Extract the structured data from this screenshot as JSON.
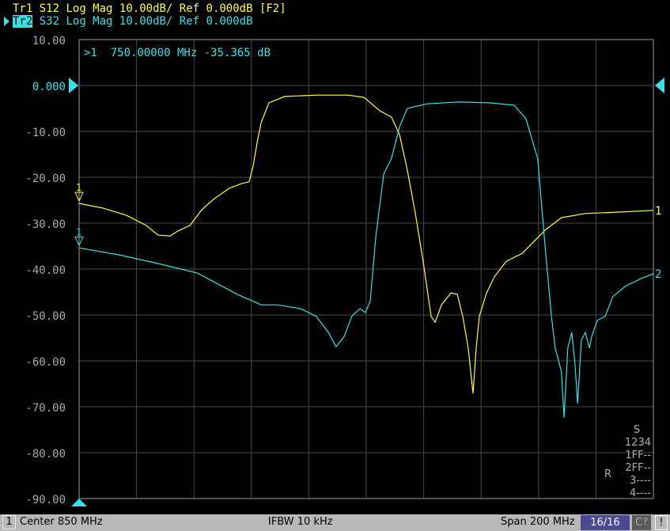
{
  "header": {
    "trace1": {
      "label": "Tr1",
      "param": "S12",
      "format": "Log Mag",
      "scale": "10.00dB/",
      "ref": "Ref 0.000dB",
      "extra": "[F2]",
      "color": "#ffff3c"
    },
    "trace2": {
      "label": "Tr2",
      "param": "S32",
      "format": "Log Mag",
      "scale": "10.00dB/",
      "ref": "Ref 0.000dB",
      "color": "#38e0e8"
    }
  },
  "marker_readout": ">1  750.00000 MHz -35.365 dB",
  "status": {
    "channel": "1",
    "center": "Center 850 MHz",
    "ifbw": "IFBW 10 kHz",
    "span": "Span 200 MHz",
    "sweep": "16/16",
    "cal": "C?",
    "warning": "!"
  },
  "sparam_table": {
    "header1": "S",
    "header2": "1234",
    "rows": [
      "1FF--",
      "2FF--",
      "3----",
      "4----"
    ],
    "rlabel": "R"
  },
  "chart_data": {
    "type": "line",
    "xlim": [
      750,
      950
    ],
    "ylim": [
      -90,
      10
    ],
    "x_unit": "MHz",
    "y_unit": "dB",
    "grid": true,
    "yticks": [
      "10.00",
      "0.000",
      "-10.00",
      "-20.00",
      "-30.00",
      "-40.00",
      "-50.00",
      "-60.00",
      "-70.00",
      "-80.00",
      "-90.00"
    ],
    "reference_level": 0,
    "markers": [
      {
        "label": "1",
        "x": 750,
        "trace": 1
      },
      {
        "label": "1",
        "x": 750,
        "trace": 2
      }
    ],
    "end_labels": [
      "1",
      "2"
    ],
    "series": [
      {
        "name": "Tr1 S12",
        "color": "#ffff3c",
        "points": [
          [
            750.0,
            -25.7
          ],
          [
            758.3,
            -26.7
          ],
          [
            766.5,
            -28.3
          ],
          [
            773.4,
            -30.5
          ],
          [
            777.5,
            -32.6
          ],
          [
            781.7,
            -32.8
          ],
          [
            784.4,
            -31.7
          ],
          [
            788.6,
            -30.5
          ],
          [
            792.7,
            -27.1
          ],
          [
            796.8,
            -24.8
          ],
          [
            802.3,
            -22.4
          ],
          [
            806.5,
            -21.4
          ],
          [
            809.2,
            -21.0
          ],
          [
            810.6,
            -17.6
          ],
          [
            812.0,
            -12.4
          ],
          [
            813.4,
            -8.1
          ],
          [
            816.1,
            -3.8
          ],
          [
            821.6,
            -2.4
          ],
          [
            832.6,
            -2.1
          ],
          [
            843.7,
            -2.1
          ],
          [
            849.2,
            -2.6
          ],
          [
            854.7,
            -5.5
          ],
          [
            858.8,
            -6.9
          ],
          [
            861.6,
            -10.7
          ],
          [
            864.3,
            -18.4
          ],
          [
            867.1,
            -27.9
          ],
          [
            869.8,
            -38.3
          ],
          [
            872.6,
            -50.3
          ],
          [
            874.0,
            -51.6
          ],
          [
            876.2,
            -47.8
          ],
          [
            879.5,
            -45.2
          ],
          [
            881.7,
            -45.5
          ],
          [
            883.6,
            -50.3
          ],
          [
            885.5,
            -57.2
          ],
          [
            887.2,
            -67.1
          ],
          [
            888.3,
            -57.2
          ],
          [
            889.4,
            -50.3
          ],
          [
            891.9,
            -45.2
          ],
          [
            894.6,
            -41.7
          ],
          [
            898.8,
            -38.3
          ],
          [
            904.3,
            -36.6
          ],
          [
            908.4,
            -34.0
          ],
          [
            912.5,
            -31.4
          ],
          [
            918.0,
            -28.8
          ],
          [
            926.3,
            -27.9
          ],
          [
            937.3,
            -27.6
          ],
          [
            950.0,
            -27.2
          ]
        ]
      },
      {
        "name": "Tr2 S32",
        "color": "#38e0e8",
        "points": [
          [
            750.0,
            -35.4
          ],
          [
            763.8,
            -36.9
          ],
          [
            777.5,
            -38.8
          ],
          [
            791.3,
            -40.9
          ],
          [
            805.1,
            -45.5
          ],
          [
            813.4,
            -47.8
          ],
          [
            818.9,
            -47.8
          ],
          [
            827.1,
            -48.6
          ],
          [
            832.6,
            -50.3
          ],
          [
            836.8,
            -53.8
          ],
          [
            839.5,
            -56.9
          ],
          [
            842.3,
            -54.7
          ],
          [
            845.0,
            -50.3
          ],
          [
            847.8,
            -48.6
          ],
          [
            849.7,
            -49.5
          ],
          [
            851.4,
            -46.9
          ],
          [
            853.3,
            -33.1
          ],
          [
            856.1,
            -19.3
          ],
          [
            858.8,
            -15.9
          ],
          [
            861.6,
            -9.0
          ],
          [
            864.3,
            -5.0
          ],
          [
            871.2,
            -4.0
          ],
          [
            882.2,
            -3.6
          ],
          [
            893.2,
            -3.8
          ],
          [
            901.5,
            -4.3
          ],
          [
            905.6,
            -7.2
          ],
          [
            909.7,
            -15.9
          ],
          [
            912.5,
            -36.6
          ],
          [
            914.5,
            -50.3
          ],
          [
            915.8,
            -57.2
          ],
          [
            916.9,
            -59.8
          ],
          [
            918.0,
            -62.4
          ],
          [
            918.9,
            -72.4
          ],
          [
            920.2,
            -57.2
          ],
          [
            921.6,
            -53.8
          ],
          [
            922.7,
            -60.7
          ],
          [
            923.6,
            -69.3
          ],
          [
            924.9,
            -55.5
          ],
          [
            926.3,
            -53.8
          ],
          [
            927.7,
            -57.2
          ],
          [
            928.5,
            -54.7
          ],
          [
            930.4,
            -51.2
          ],
          [
            933.2,
            -50.3
          ],
          [
            935.9,
            -46.0
          ],
          [
            940.1,
            -43.8
          ],
          [
            945.6,
            -42.1
          ],
          [
            950.0,
            -41.0
          ]
        ]
      }
    ]
  }
}
